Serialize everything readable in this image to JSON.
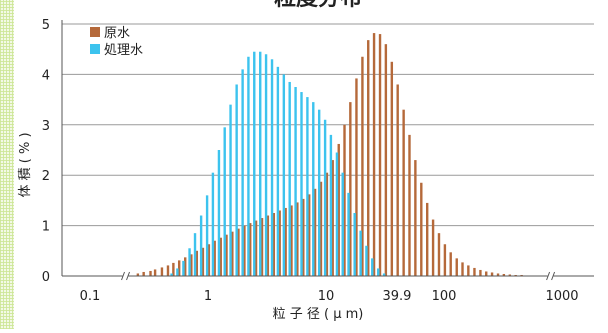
{
  "chart_data": {
    "type": "bar",
    "title": "粒度分布",
    "xlabel": "粒 子 径 ( μ m)",
    "ylabel": "体 積 ( % )",
    "ylim": [
      0,
      5
    ],
    "yticks": [
      0,
      1,
      2,
      3,
      4,
      5
    ],
    "x_scale": "log",
    "xlim": [
      0.1,
      1000
    ],
    "xticks": [
      0.1,
      1,
      10,
      39.9,
      100,
      1000
    ],
    "xtick_labels": [
      "0.1",
      "1",
      "10",
      "39.9",
      "100",
      "1000"
    ],
    "axis_breaks_x": [
      0.2,
      800
    ],
    "grid": "horizontal",
    "legend": "top-left",
    "series": [
      {
        "name": "原水",
        "color": "#b5693a",
        "x": [
          0.25,
          0.28,
          0.32,
          0.35,
          0.4,
          0.45,
          0.5,
          0.56,
          0.63,
          0.71,
          0.79,
          0.89,
          1.0,
          1.12,
          1.26,
          1.41,
          1.58,
          1.78,
          2.0,
          2.24,
          2.51,
          2.82,
          3.16,
          3.55,
          3.98,
          4.47,
          5.01,
          5.62,
          6.31,
          7.08,
          7.94,
          8.91,
          10.0,
          11.2,
          12.6,
          14.1,
          15.8,
          17.8,
          20.0,
          22.4,
          25.1,
          28.2,
          31.6,
          35.5,
          39.8,
          44.7,
          50.1,
          56.2,
          63.1,
          70.8,
          79.4,
          89.1,
          100,
          112,
          126,
          141,
          158,
          178,
          200,
          224,
          251,
          282,
          316,
          355,
          398,
          447,
          501,
          562,
          631,
          708
        ],
        "values": [
          0.05,
          0.08,
          0.1,
          0.13,
          0.17,
          0.21,
          0.26,
          0.31,
          0.37,
          0.43,
          0.5,
          0.56,
          0.63,
          0.7,
          0.76,
          0.82,
          0.88,
          0.94,
          1.0,
          1.05,
          1.1,
          1.15,
          1.2,
          1.25,
          1.3,
          1.35,
          1.4,
          1.46,
          1.53,
          1.62,
          1.73,
          1.87,
          2.05,
          2.3,
          2.62,
          3.0,
          3.45,
          3.92,
          4.35,
          4.68,
          4.82,
          4.8,
          4.6,
          4.25,
          3.8,
          3.3,
          2.8,
          2.3,
          1.85,
          1.45,
          1.12,
          0.85,
          0.63,
          0.47,
          0.35,
          0.27,
          0.21,
          0.16,
          0.12,
          0.09,
          0.07,
          0.05,
          0.04,
          0.03,
          0.02,
          0.02,
          0.01,
          0.01,
          0.01,
          0.01
        ]
      },
      {
        "name": "処理水",
        "color": "#3cc3ee",
        "x": [
          0.5,
          0.56,
          0.63,
          0.71,
          0.79,
          0.89,
          1.0,
          1.12,
          1.26,
          1.41,
          1.58,
          1.78,
          2.0,
          2.24,
          2.51,
          2.82,
          3.16,
          3.55,
          3.98,
          4.47,
          5.01,
          5.62,
          6.31,
          7.08,
          7.94,
          8.91,
          10.0,
          11.2,
          12.6,
          14.1,
          15.8,
          17.8,
          20.0,
          22.4,
          25.1,
          28.2,
          31.6
        ],
        "values": [
          0.05,
          0.15,
          0.3,
          0.55,
          0.85,
          1.2,
          1.6,
          2.05,
          2.5,
          2.95,
          3.4,
          3.8,
          4.1,
          4.35,
          4.45,
          4.45,
          4.4,
          4.3,
          4.15,
          4.0,
          3.85,
          3.75,
          3.65,
          3.55,
          3.45,
          3.3,
          3.1,
          2.8,
          2.45,
          2.05,
          1.65,
          1.25,
          0.9,
          0.6,
          0.35,
          0.15,
          0.05
        ]
      }
    ]
  }
}
